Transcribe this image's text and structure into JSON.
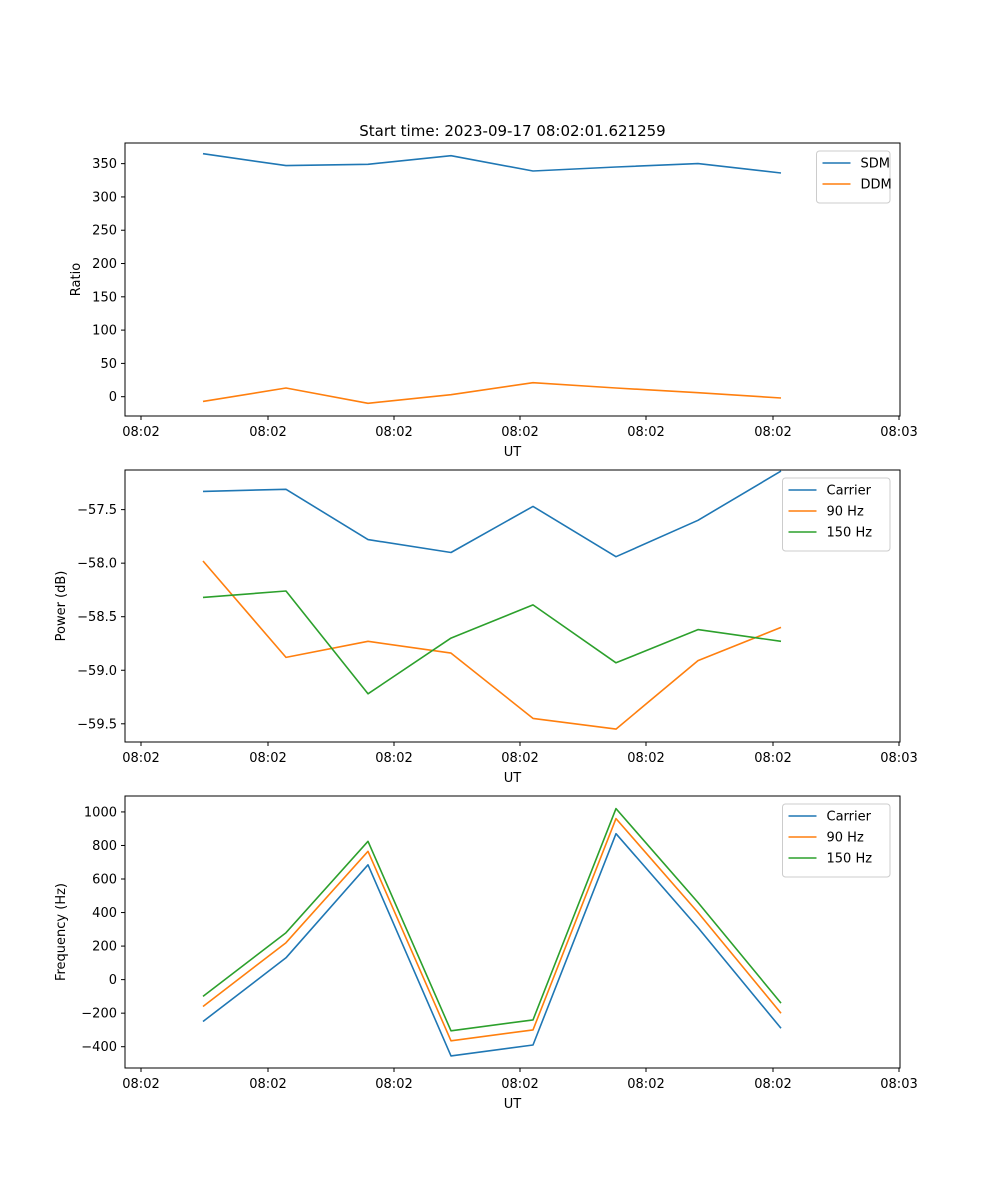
{
  "chart_data": [
    {
      "type": "line",
      "title": "Start time: 2023-09-17 08:02:01.621259",
      "xlabel": "UT",
      "ylabel": "Ratio",
      "xticks": [
        "08:02",
        "08:02",
        "08:02",
        "08:02",
        "08:02",
        "08:02",
        "08:03"
      ],
      "yticks": [
        0,
        50,
        100,
        150,
        200,
        250,
        300,
        350
      ],
      "ylim": [
        -29,
        381
      ],
      "legend": "top-right",
      "series": [
        {
          "name": "SDM",
          "color": "#1f77b4",
          "values": [
            365,
            347,
            349,
            362,
            339,
            345,
            350,
            336
          ]
        },
        {
          "name": "DDM",
          "color": "#ff7f0e",
          "values": [
            -7,
            13,
            -10,
            3,
            21,
            13,
            6,
            -2
          ]
        }
      ]
    },
    {
      "type": "line",
      "title": "",
      "xlabel": "UT",
      "ylabel": "Power (dB)",
      "xticks": [
        "08:02",
        "08:02",
        "08:02",
        "08:02",
        "08:02",
        "08:02",
        "08:03"
      ],
      "yticks": [
        -57.5,
        -58.0,
        -58.5,
        -59.0,
        -59.5
      ],
      "ylabels": [
        "−57.5",
        "−58.0",
        "−58.5",
        "−59.0",
        "−59.5"
      ],
      "ylim": [
        -59.67,
        -57.13
      ],
      "legend": "top-right",
      "series": [
        {
          "name": "Carrier",
          "color": "#1f77b4",
          "values": [
            -57.33,
            -57.31,
            -57.78,
            -57.9,
            -57.47,
            -57.94,
            -57.6,
            -57.14
          ]
        },
        {
          "name": "90 Hz",
          "color": "#ff7f0e",
          "values": [
            -57.98,
            -58.88,
            -58.73,
            -58.84,
            -59.45,
            -59.55,
            -58.91,
            -58.6
          ]
        },
        {
          "name": "150 Hz",
          "color": "#2ca02c",
          "values": [
            -58.32,
            -58.26,
            -59.22,
            -58.7,
            -58.39,
            -58.93,
            -58.62,
            -58.73
          ]
        }
      ]
    },
    {
      "type": "line",
      "title": "",
      "xlabel": "UT",
      "ylabel": "Frequency (Hz)",
      "xticks": [
        "08:02",
        "08:02",
        "08:02",
        "08:02",
        "08:02",
        "08:02",
        "08:03"
      ],
      "yticks": [
        1000,
        800,
        600,
        400,
        200,
        0,
        -200,
        -400
      ],
      "ylabels": [
        "1000",
        "800",
        "600",
        "400",
        "200",
        "0",
        "−200",
        "−400"
      ],
      "ylim": [
        -527,
        1095
      ],
      "legend": "top-right",
      "series": [
        {
          "name": "Carrier",
          "color": "#1f77b4",
          "values": [
            -250,
            130,
            685,
            -455,
            -390,
            870,
            310,
            -290
          ]
        },
        {
          "name": "90 Hz",
          "color": "#ff7f0e",
          "values": [
            -160,
            220,
            765,
            -365,
            -300,
            960,
            400,
            -200
          ]
        },
        {
          "name": "150 Hz",
          "color": "#2ca02c",
          "values": [
            -100,
            280,
            825,
            -305,
            -240,
            1020,
            460,
            -140
          ]
        }
      ]
    }
  ]
}
